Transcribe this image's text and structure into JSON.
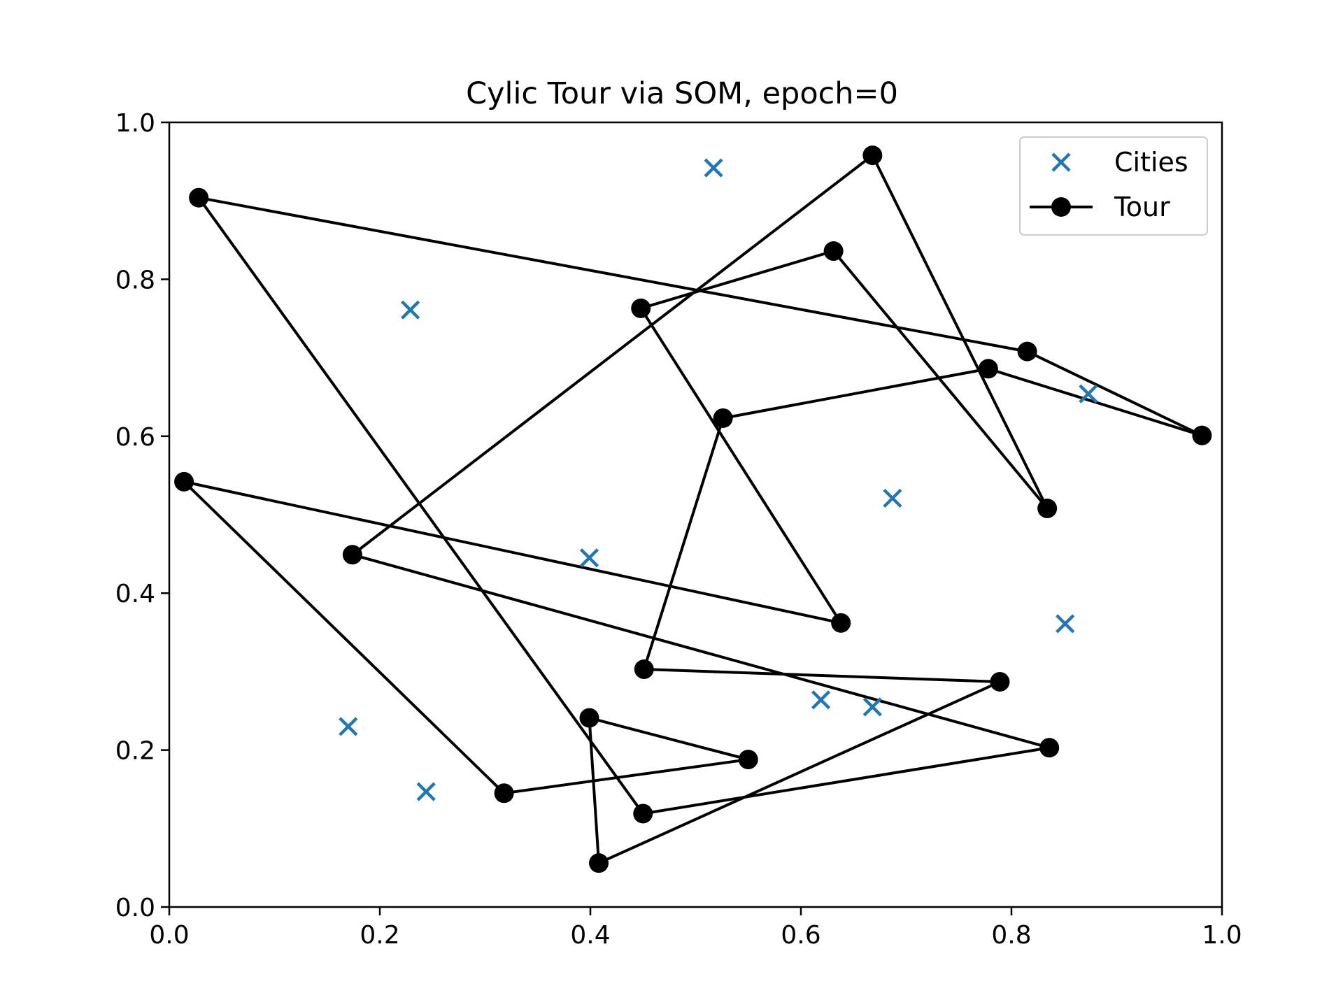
{
  "chart_data": {
    "type": "scatter",
    "title": "Cylic Tour via SOM, epoch=0",
    "xlabel": "",
    "ylabel": "",
    "xlim": [
      0.0,
      1.0
    ],
    "ylim": [
      0.0,
      1.0
    ],
    "x_ticks": [
      "0.0",
      "0.2",
      "0.4",
      "0.6",
      "0.8",
      "1.0"
    ],
    "y_ticks": [
      "0.0",
      "0.2",
      "0.4",
      "0.6",
      "0.8",
      "1.0"
    ],
    "grid": false,
    "legend_position": "top-right",
    "series": [
      {
        "name": "Cities",
        "kind": "scatter",
        "marker": "x",
        "color": "#1f77b4",
        "points": [
          [
            0.517,
            0.942
          ],
          [
            0.229,
            0.761
          ],
          [
            0.873,
            0.654
          ],
          [
            0.687,
            0.521
          ],
          [
            0.399,
            0.445
          ],
          [
            0.851,
            0.361
          ],
          [
            0.619,
            0.264
          ],
          [
            0.668,
            0.255
          ],
          [
            0.17,
            0.23
          ],
          [
            0.244,
            0.147
          ]
        ]
      },
      {
        "name": "Tour",
        "kind": "line",
        "marker": "circle",
        "color": "#000000",
        "closed": true,
        "points": [
          [
            0.028,
            0.904
          ],
          [
            0.815,
            0.708
          ],
          [
            0.981,
            0.601
          ],
          [
            0.778,
            0.686
          ],
          [
            0.526,
            0.623
          ],
          [
            0.451,
            0.303
          ],
          [
            0.789,
            0.287
          ],
          [
            0.408,
            0.056
          ],
          [
            0.399,
            0.241
          ],
          [
            0.55,
            0.188
          ],
          [
            0.318,
            0.145
          ],
          [
            0.014,
            0.542
          ],
          [
            0.638,
            0.362
          ],
          [
            0.448,
            0.763
          ],
          [
            0.631,
            0.836
          ],
          [
            0.834,
            0.508
          ],
          [
            0.668,
            0.958
          ],
          [
            0.174,
            0.449
          ],
          [
            0.836,
            0.203
          ],
          [
            0.45,
            0.119
          ]
        ]
      }
    ]
  }
}
